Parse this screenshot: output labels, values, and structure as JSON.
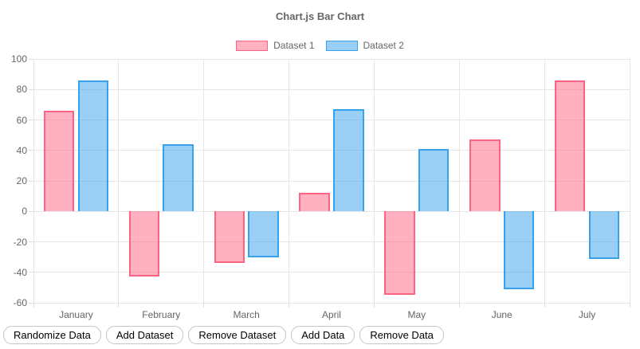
{
  "chart_data": {
    "type": "bar",
    "title": "Chart.js Bar Chart",
    "categories": [
      "January",
      "February",
      "March",
      "April",
      "May",
      "June",
      "July"
    ],
    "series": [
      {
        "name": "Dataset 1",
        "border_color": "#FF6384",
        "fill_color": "rgba(255,99,132,0.5)",
        "values": [
          66,
          -43,
          -34,
          12,
          -55,
          47,
          86
        ]
      },
      {
        "name": "Dataset 2",
        "border_color": "#36A2EB",
        "fill_color": "rgba(54,162,235,0.5)",
        "values": [
          86,
          44,
          -30,
          67,
          41,
          -51,
          -31
        ]
      }
    ],
    "ylim": [
      -60,
      100
    ],
    "yticks": [
      100,
      80,
      60,
      40,
      20,
      0,
      -20,
      -40,
      -60
    ],
    "xlabel": "",
    "ylabel": "",
    "grid": true,
    "legend_position": "top",
    "grid_color": "#e6e6e6",
    "tick_label_color": "#666666"
  },
  "toolbar": {
    "buttons": [
      {
        "label": "Randomize Data"
      },
      {
        "label": "Add Dataset"
      },
      {
        "label": "Remove Dataset"
      },
      {
        "label": "Add Data"
      },
      {
        "label": "Remove Data"
      }
    ]
  }
}
